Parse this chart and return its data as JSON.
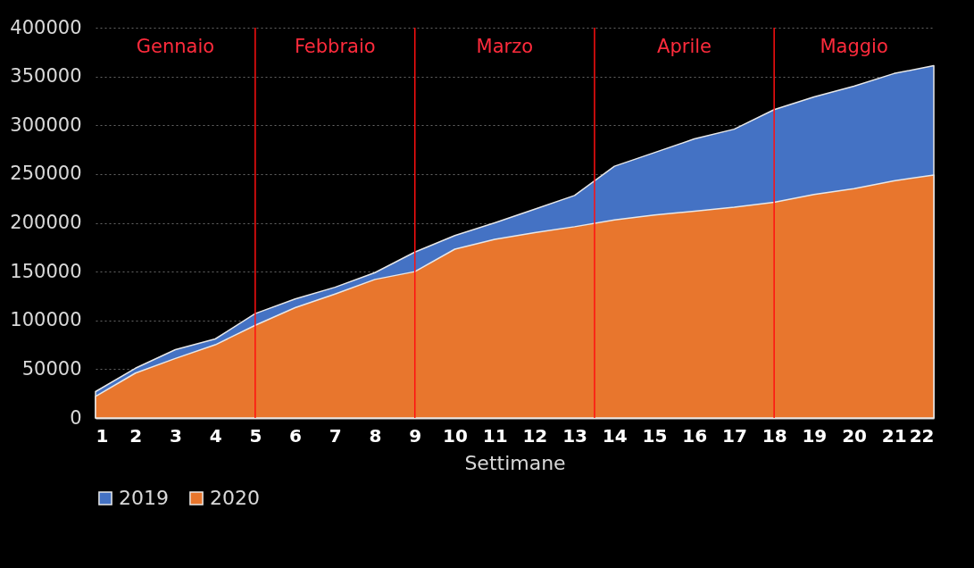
{
  "chart_data": {
    "type": "area",
    "xlabel": "Settimane",
    "x": [
      1,
      2,
      3,
      4,
      5,
      6,
      7,
      8,
      9,
      10,
      11,
      12,
      13,
      14,
      15,
      16,
      17,
      18,
      19,
      20,
      21,
      22
    ],
    "series": [
      {
        "name": "2019",
        "color": "#4472c4",
        "values": [
          27000,
          51000,
          70000,
          81000,
          107000,
          122000,
          134000,
          149000,
          170000,
          187000,
          200000,
          214000,
          228000,
          258000,
          272000,
          286000,
          296000,
          316000,
          329000,
          340000,
          353000,
          361000
        ]
      },
      {
        "name": "2020",
        "color": "#e8762d",
        "values": [
          22000,
          46000,
          61000,
          75000,
          95000,
          113000,
          127000,
          142000,
          150000,
          173000,
          183000,
          190000,
          196000,
          203000,
          208000,
          212000,
          216000,
          221000,
          229000,
          235000,
          243000,
          249000
        ]
      }
    ],
    "xlim": [
      1,
      22
    ],
    "xticks": [
      1,
      2,
      3,
      4,
      5,
      6,
      7,
      8,
      9,
      10,
      11,
      12,
      13,
      14,
      15,
      16,
      17,
      18,
      19,
      20,
      21,
      22
    ],
    "ylim": [
      0,
      400000
    ],
    "yticks": [
      0,
      50000,
      100000,
      150000,
      200000,
      250000,
      300000,
      350000,
      400000
    ],
    "grid": "y",
    "legend": "bottom",
    "ref_lines": [
      {
        "axis": "x",
        "value": 5,
        "color": "#ff1010"
      },
      {
        "axis": "x",
        "value": 9,
        "color": "#ff1010"
      },
      {
        "axis": "x",
        "value": 13.5,
        "color": "#ff1010"
      },
      {
        "axis": "x",
        "value": 18,
        "color": "#ff1010"
      }
    ],
    "annotations": [
      "Gennaio",
      "Febbraio",
      "Marzo",
      "Aprile",
      "Maggio"
    ]
  }
}
